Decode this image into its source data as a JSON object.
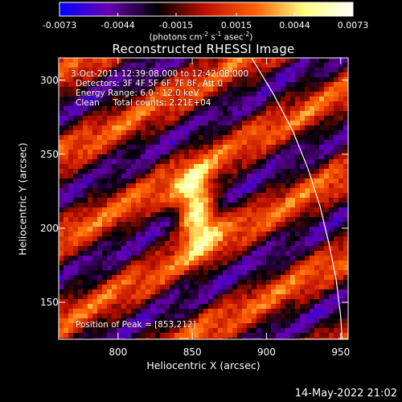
{
  "chart_data": {
    "type": "heatmap",
    "title": "Reconstructed RHESSI Image",
    "xlabel": "Heliocentric X (arcsec)",
    "ylabel": "Heliocentric Y (arcsec)",
    "xlim": [
      760,
      955
    ],
    "ylim": [
      125,
      315
    ],
    "x_ticks": [
      "800",
      "850",
      "900",
      "950"
    ],
    "x_tick_values": [
      800,
      850,
      900,
      950
    ],
    "y_ticks": [
      "150",
      "200",
      "250",
      "300"
    ],
    "y_tick_values": [
      150,
      200,
      250,
      300
    ],
    "peak": {
      "x": 853,
      "y": 212
    },
    "limb_curve": [
      [
        890,
        315
      ],
      [
        905,
        290
      ],
      [
        918,
        265
      ],
      [
        928,
        240
      ],
      [
        936,
        215
      ],
      [
        942,
        190
      ],
      [
        947,
        165
      ],
      [
        950,
        140
      ],
      [
        951,
        125
      ]
    ],
    "colorbar": {
      "min": -0.0073,
      "max": 0.0073,
      "tick_labels": [
        "-0.0073",
        "-0.0044",
        "-0.0015",
        "0.0015",
        "0.0044",
        "0.0073"
      ],
      "tick_values": [
        -0.0073,
        -0.0044,
        -0.0015,
        0.0015,
        0.0044,
        0.0073
      ],
      "colors": [
        "#0000ff",
        "#6a00b0",
        "#000000",
        "#c01000",
        "#ff6000",
        "#ffff80",
        "#ffffff"
      ]
    },
    "grid": false
  },
  "text": {
    "cb_unit_prefix": "(photons cm",
    "cb_unit_exp1": "-2",
    "cb_unit_mid1": " s",
    "cb_unit_exp2": "-1",
    "cb_unit_mid2": " asec",
    "cb_unit_exp3": "-2",
    "cb_unit_suffix": ")",
    "time_range": "3-Oct-2011 12:39:08.000 to 12:42:08.000",
    "detectors": "Detectors: 3F 4F 5F 6F 7F 8F, Att 0",
    "energy": "Energy Range: 6.0 - 12.0 keV",
    "clean": "Clean     Total counts: 2.21E+04",
    "peak": "Position of Peak = [853,212]",
    "footer": "14-May-2022 21:02"
  }
}
